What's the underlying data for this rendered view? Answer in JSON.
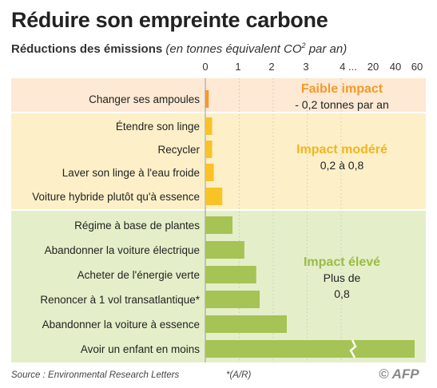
{
  "title": "Réduire son empreinte carbone",
  "subtitle_main": "Réductions des émissions",
  "subtitle_unit_open": "(en tonnes équivalent CO",
  "subtitle_unit_sup": "2",
  "subtitle_unit_close": " par an)",
  "source": "Source : Environmental Research Letters",
  "footnote": "*(A/R)",
  "logo": "© AFP",
  "colors": {
    "low_bg": "#fde9d4",
    "mid_bg": "#fdf0c8",
    "high_bg": "#e4efc9",
    "low_bar": "#f39a2a",
    "mid_bar": "#f9c327",
    "high_bar": "#a6c355",
    "low_text": "#f39a2a",
    "mid_text": "#f3b51d",
    "high_text": "#9cbb47"
  },
  "chart_data": {
    "type": "bar",
    "orientation": "horizontal",
    "categories": [
      "Changer ses ampoules",
      "Étendre son linge",
      "Recycler",
      "Laver son linge à l'eau froide",
      "Voiture hybride plutôt qu'à essence",
      "Régime à base de plantes",
      "Abandonner la voiture électrique",
      "Acheter de l'énergie verte",
      "Renoncer à 1 vol transatlantique*",
      "Abandonner la voiture à essence",
      "Avoir un enfant en moins"
    ],
    "values": [
      0.1,
      0.2,
      0.2,
      0.25,
      0.5,
      0.8,
      1.15,
      1.5,
      1.6,
      2.4,
      58.6
    ],
    "groups": [
      "low",
      "mid",
      "mid",
      "mid",
      "mid",
      "high",
      "high",
      "high",
      "high",
      "high",
      "high"
    ],
    "xticks": [
      "0",
      "1",
      "2",
      "3",
      "4 ...",
      "20",
      "40",
      "60"
    ],
    "axis_break": "4 ... 20",
    "legend": [
      {
        "group": "low",
        "title": "Faible impact",
        "detail": "- 0,2 tonnes par an"
      },
      {
        "group": "mid",
        "title": "Impact modéré",
        "detail": "0,2 à 0,8"
      },
      {
        "group": "high",
        "title": "Impact élevé",
        "detail_lines": [
          "Plus de",
          "0,8"
        ]
      }
    ]
  }
}
